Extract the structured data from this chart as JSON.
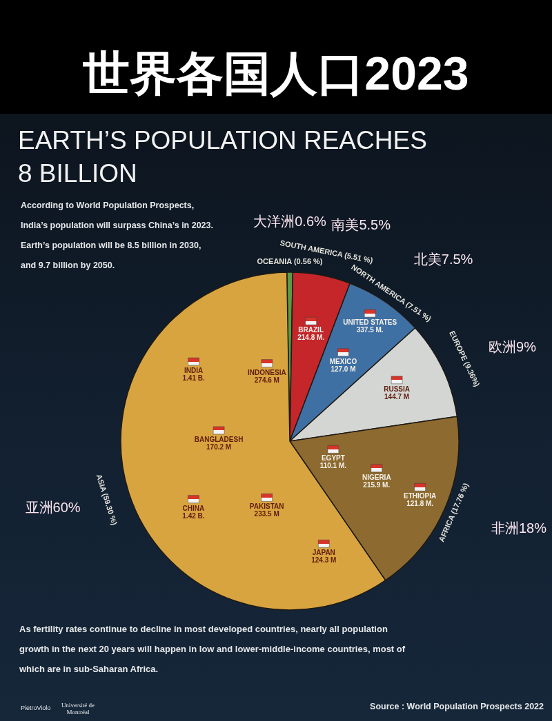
{
  "chart_data": {
    "type": "pie",
    "title": "世界各国人口2023",
    "subtitle": "EARTH’S POPULATION REACHES 8 BILLION",
    "categories": [
      "OCEANIA (0.56 %)",
      "SOUTH AMERICA (5.51 %)",
      "NORTH AMERICA (7.51 %)",
      "EUROPE (9.36%)",
      "AFRICA (17.76 %)",
      "ASIA (59.30 %)"
    ],
    "values": [
      0.56,
      5.51,
      7.51,
      9.36,
      17.76,
      59.3
    ],
    "colors": [
      "#5c9a44",
      "#c4262a",
      "#3f70a3",
      "#d4d6d3",
      "#8d6a2f",
      "#d8a440"
    ],
    "value_labels": [
      "大洋洲0.6%",
      "南美5.5%",
      "北美7.5%",
      "欧洲9%",
      "非洲18%",
      "亚洲60%"
    ],
    "annotations": [
      "According to World Population Prospects, India’s population will surpass China’s in 2023. Earth’s population will be 8.5 billion in 2030, and 9.7 billion by 2050.",
      "As fertility rates continue to decline in most developed countries, nearly all population growth in the next 20 years will happen in low and lower-middle-income countries, most of which are in sub-Saharan Africa.",
      "Source : World Population Prospects 2022",
      "PietroViolo",
      "Université de Montréal",
      {
        "text": "BRAZIL 214.8 M.",
        "x": "SOUTH AMERICA (5.51 %)"
      },
      {
        "text": "UNITED STATES 337.5 M.",
        "x": "NORTH AMERICA (7.51 %)"
      },
      {
        "text": "MEXICO 127.0 M",
        "x": "NORTH AMERICA (7.51 %)"
      },
      {
        "text": "RUSSIA 144.7 M",
        "x": "EUROPE (9.36%)"
      },
      {
        "text": "ETHIOPIA 121.8 M.",
        "x": "AFRICA (17.76 %)"
      },
      {
        "text": "NIGERIA 215.9 M.",
        "x": "AFRICA (17.76 %)"
      },
      {
        "text": "EGYPT 110.1 M.",
        "x": "AFRICA (17.76 %)"
      },
      {
        "text": "JAPAN 124.3 M",
        "x": "ASIA (59.30 %)"
      },
      {
        "text": "PAKISTAN 233.5 M",
        "x": "ASIA (59.30 %)"
      },
      {
        "text": "CHINA 1.42 B.",
        "x": "ASIA (59.30 %)"
      },
      {
        "text": "BANGLADESH 170.2 M",
        "x": "ASIA (59.30 %)"
      },
      {
        "text": "INDIA 1.41 B.",
        "x": "ASIA (59.30 %)"
      },
      {
        "text": "INDONESIA 274.6 M",
        "x": "ASIA (59.30 %)"
      }
    ]
  }
}
